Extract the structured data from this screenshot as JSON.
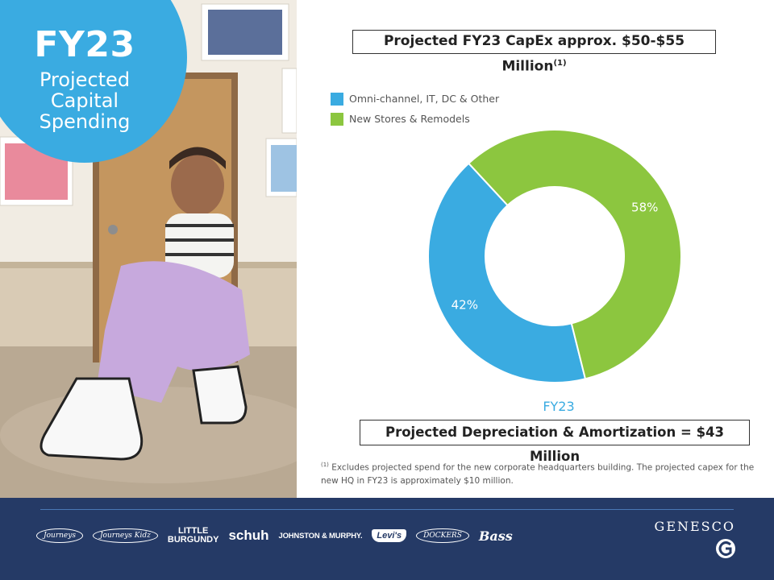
{
  "badge": {
    "year": "FY23",
    "subtitle_lines": [
      "Projected",
      "Capital",
      "Spending"
    ]
  },
  "chart_header": {
    "title": "Projected FY23 CapEx approx. $50-$55 Million",
    "footnote_marker": "(1)"
  },
  "chart_data": {
    "type": "pie",
    "variant": "donut",
    "categories": [
      "Omni-channel, IT, DC & Other",
      "New Stores & Remodels"
    ],
    "values": [
      42,
      58
    ],
    "value_labels": [
      "42%",
      "58%"
    ],
    "colors": [
      "#3aabe1",
      "#8cc63f"
    ],
    "legend_position": "top-left",
    "xlabel": "FY23"
  },
  "depreciation": {
    "text": "Projected Depreciation & Amortization = $43 Million"
  },
  "footnote": {
    "marker": "(1)",
    "text": "Excludes projected spend for the new corporate headquarters building.  The projected capex for the new HQ in FY23 is approximately $10 million."
  },
  "footer": {
    "brands": {
      "journeys": "Journeys",
      "journeys_kidz": "Journeys Kidz",
      "little_burgundy_top": "LITTLE",
      "little_burgundy_bottom": "BURGUNDY",
      "schuh": "schuh",
      "johnston_murphy": "JOHNSTON & MURPHY.",
      "levis": "Levi's",
      "dockers": "DOCKERS",
      "bass": "Bass"
    },
    "company": "GENESCO",
    "logo_icon": "genesco-g-icon"
  },
  "colors": {
    "accent_blue": "#3aabe1",
    "accent_green": "#8cc63f",
    "footer_navy": "#253a66"
  }
}
